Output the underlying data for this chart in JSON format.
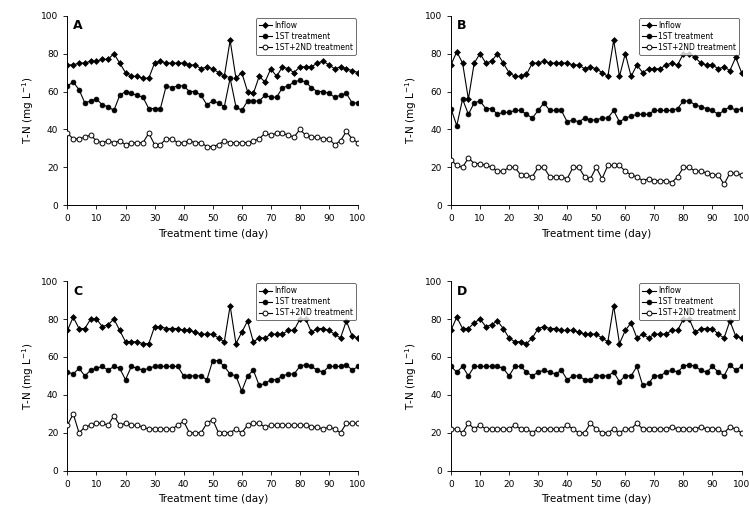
{
  "panels": [
    "A",
    "B",
    "C",
    "D"
  ],
  "xlabel": "Treatment time (day)",
  "ylabel": "T-N (mg L-1)",
  "xlim": [
    0,
    100
  ],
  "ylim": [
    0,
    100
  ],
  "xticks": [
    0,
    10,
    20,
    30,
    40,
    50,
    60,
    70,
    80,
    90,
    100
  ],
  "yticks": [
    0,
    20,
    40,
    60,
    80,
    100
  ],
  "legend_labels": [
    "Inflow",
    "1ST treatment",
    "1ST+2ND treatment"
  ],
  "A": {
    "x": [
      0,
      2,
      4,
      6,
      8,
      10,
      12,
      14,
      16,
      18,
      20,
      22,
      24,
      26,
      28,
      30,
      32,
      34,
      36,
      38,
      40,
      42,
      44,
      46,
      48,
      50,
      52,
      54,
      56,
      58,
      60,
      62,
      64,
      66,
      68,
      70,
      72,
      74,
      76,
      78,
      80,
      82,
      84,
      86,
      88,
      90,
      92,
      94,
      96,
      98,
      100
    ],
    "inflow": [
      74,
      74,
      75,
      75,
      76,
      76,
      77,
      77,
      80,
      75,
      70,
      68,
      68,
      67,
      67,
      75,
      76,
      75,
      75,
      75,
      75,
      74,
      74,
      72,
      73,
      72,
      70,
      68,
      87,
      67,
      70,
      60,
      59,
      68,
      65,
      72,
      68,
      73,
      72,
      70,
      73,
      73,
      73,
      75,
      76,
      74,
      72,
      73,
      72,
      71,
      70
    ],
    "first": [
      63,
      65,
      61,
      54,
      55,
      56,
      53,
      52,
      50,
      58,
      60,
      59,
      58,
      57,
      51,
      51,
      51,
      63,
      62,
      63,
      63,
      60,
      60,
      58,
      53,
      55,
      54,
      52,
      67,
      52,
      50,
      55,
      55,
      55,
      58,
      57,
      57,
      62,
      63,
      65,
      66,
      65,
      62,
      60,
      60,
      59,
      57,
      58,
      59,
      54,
      54
    ],
    "second": [
      38,
      35,
      35,
      36,
      37,
      34,
      33,
      34,
      33,
      34,
      32,
      33,
      33,
      33,
      38,
      32,
      32,
      35,
      35,
      33,
      33,
      34,
      33,
      33,
      31,
      31,
      32,
      34,
      33,
      33,
      33,
      33,
      34,
      35,
      38,
      37,
      38,
      38,
      37,
      36,
      40,
      37,
      36,
      36,
      35,
      35,
      32,
      34,
      39,
      35,
      33
    ]
  },
  "B": {
    "x": [
      0,
      2,
      4,
      6,
      8,
      10,
      12,
      14,
      16,
      18,
      20,
      22,
      24,
      26,
      28,
      30,
      32,
      34,
      36,
      38,
      40,
      42,
      44,
      46,
      48,
      50,
      52,
      54,
      56,
      58,
      60,
      62,
      64,
      66,
      68,
      70,
      72,
      74,
      76,
      78,
      80,
      82,
      84,
      86,
      88,
      90,
      92,
      94,
      96,
      98,
      100
    ],
    "inflow": [
      74,
      81,
      75,
      56,
      75,
      80,
      75,
      76,
      80,
      75,
      70,
      68,
      68,
      69,
      75,
      75,
      76,
      75,
      75,
      75,
      75,
      74,
      74,
      72,
      73,
      72,
      70,
      68,
      87,
      68,
      80,
      68,
      74,
      70,
      72,
      72,
      72,
      74,
      75,
      74,
      80,
      80,
      78,
      75,
      74,
      74,
      72,
      73,
      71,
      78,
      70
    ],
    "first": [
      51,
      42,
      56,
      48,
      54,
      55,
      51,
      51,
      48,
      49,
      49,
      50,
      50,
      48,
      46,
      50,
      54,
      50,
      50,
      50,
      44,
      45,
      44,
      46,
      45,
      45,
      46,
      46,
      50,
      44,
      46,
      47,
      48,
      48,
      48,
      50,
      50,
      50,
      50,
      51,
      55,
      55,
      53,
      52,
      51,
      50,
      48,
      50,
      52,
      50,
      51
    ],
    "second": [
      24,
      21,
      20,
      25,
      22,
      22,
      21,
      20,
      18,
      18,
      20,
      20,
      16,
      16,
      15,
      20,
      20,
      15,
      15,
      15,
      14,
      20,
      20,
      15,
      14,
      20,
      14,
      21,
      21,
      21,
      18,
      16,
      15,
      13,
      14,
      13,
      13,
      13,
      12,
      15,
      20,
      20,
      18,
      18,
      17,
      16,
      16,
      11,
      17,
      17,
      16
    ]
  },
  "C": {
    "x": [
      0,
      2,
      4,
      6,
      8,
      10,
      12,
      14,
      16,
      18,
      20,
      22,
      24,
      26,
      28,
      30,
      32,
      34,
      36,
      38,
      40,
      42,
      44,
      46,
      48,
      50,
      52,
      54,
      56,
      58,
      60,
      62,
      64,
      66,
      68,
      70,
      72,
      74,
      76,
      78,
      80,
      82,
      84,
      86,
      88,
      90,
      92,
      94,
      96,
      98,
      100
    ],
    "inflow": [
      74,
      81,
      75,
      75,
      80,
      80,
      76,
      77,
      80,
      74,
      68,
      68,
      68,
      67,
      67,
      76,
      76,
      75,
      75,
      75,
      74,
      74,
      73,
      72,
      72,
      72,
      70,
      68,
      87,
      67,
      73,
      79,
      68,
      70,
      70,
      72,
      72,
      72,
      74,
      74,
      80,
      80,
      73,
      75,
      75,
      74,
      72,
      70,
      79,
      71,
      70
    ],
    "first": [
      52,
      51,
      54,
      50,
      53,
      54,
      55,
      53,
      55,
      54,
      48,
      55,
      54,
      53,
      54,
      55,
      55,
      55,
      55,
      55,
      50,
      50,
      50,
      50,
      48,
      58,
      58,
      55,
      51,
      50,
      42,
      50,
      53,
      45,
      46,
      48,
      48,
      50,
      51,
      51,
      55,
      56,
      55,
      53,
      52,
      55,
      55,
      55,
      56,
      53,
      55
    ],
    "second": [
      24,
      30,
      20,
      23,
      24,
      25,
      25,
      24,
      29,
      24,
      25,
      24,
      24,
      23,
      22,
      22,
      22,
      22,
      22,
      24,
      26,
      20,
      20,
      20,
      25,
      27,
      20,
      20,
      20,
      22,
      20,
      24,
      25,
      25,
      23,
      24,
      24,
      24,
      24,
      24,
      24,
      24,
      23,
      23,
      22,
      23,
      22,
      20,
      25,
      25,
      25
    ]
  },
  "D": {
    "x": [
      0,
      2,
      4,
      6,
      8,
      10,
      12,
      14,
      16,
      18,
      20,
      22,
      24,
      26,
      28,
      30,
      32,
      34,
      36,
      38,
      40,
      42,
      44,
      46,
      48,
      50,
      52,
      54,
      56,
      58,
      60,
      62,
      64,
      66,
      68,
      70,
      72,
      74,
      76,
      78,
      80,
      82,
      84,
      86,
      88,
      90,
      92,
      94,
      96,
      98,
      100
    ],
    "inflow": [
      74,
      81,
      75,
      75,
      78,
      80,
      76,
      77,
      79,
      75,
      70,
      68,
      68,
      67,
      70,
      75,
      76,
      75,
      75,
      74,
      74,
      74,
      73,
      72,
      72,
      72,
      70,
      68,
      87,
      67,
      74,
      78,
      70,
      72,
      70,
      72,
      72,
      72,
      74,
      74,
      80,
      80,
      73,
      75,
      75,
      75,
      72,
      70,
      79,
      71,
      70
    ],
    "first": [
      55,
      52,
      55,
      50,
      55,
      55,
      55,
      55,
      55,
      54,
      50,
      55,
      55,
      52,
      50,
      52,
      53,
      52,
      51,
      53,
      48,
      50,
      50,
      48,
      48,
      50,
      50,
      50,
      52,
      47,
      50,
      50,
      55,
      45,
      46,
      50,
      50,
      52,
      53,
      52,
      55,
      56,
      55,
      53,
      52,
      55,
      52,
      50,
      56,
      53,
      55
    ],
    "second": [
      22,
      22,
      20,
      25,
      22,
      24,
      22,
      22,
      22,
      22,
      22,
      24,
      22,
      22,
      20,
      22,
      22,
      22,
      22,
      22,
      24,
      22,
      20,
      20,
      25,
      22,
      20,
      20,
      22,
      20,
      22,
      22,
      25,
      22,
      22,
      22,
      22,
      22,
      23,
      22,
      22,
      22,
      22,
      23,
      22,
      22,
      22,
      20,
      23,
      22,
      20
    ]
  },
  "line_color": "#000000",
  "markersize": 3,
  "linewidth": 0.8
}
